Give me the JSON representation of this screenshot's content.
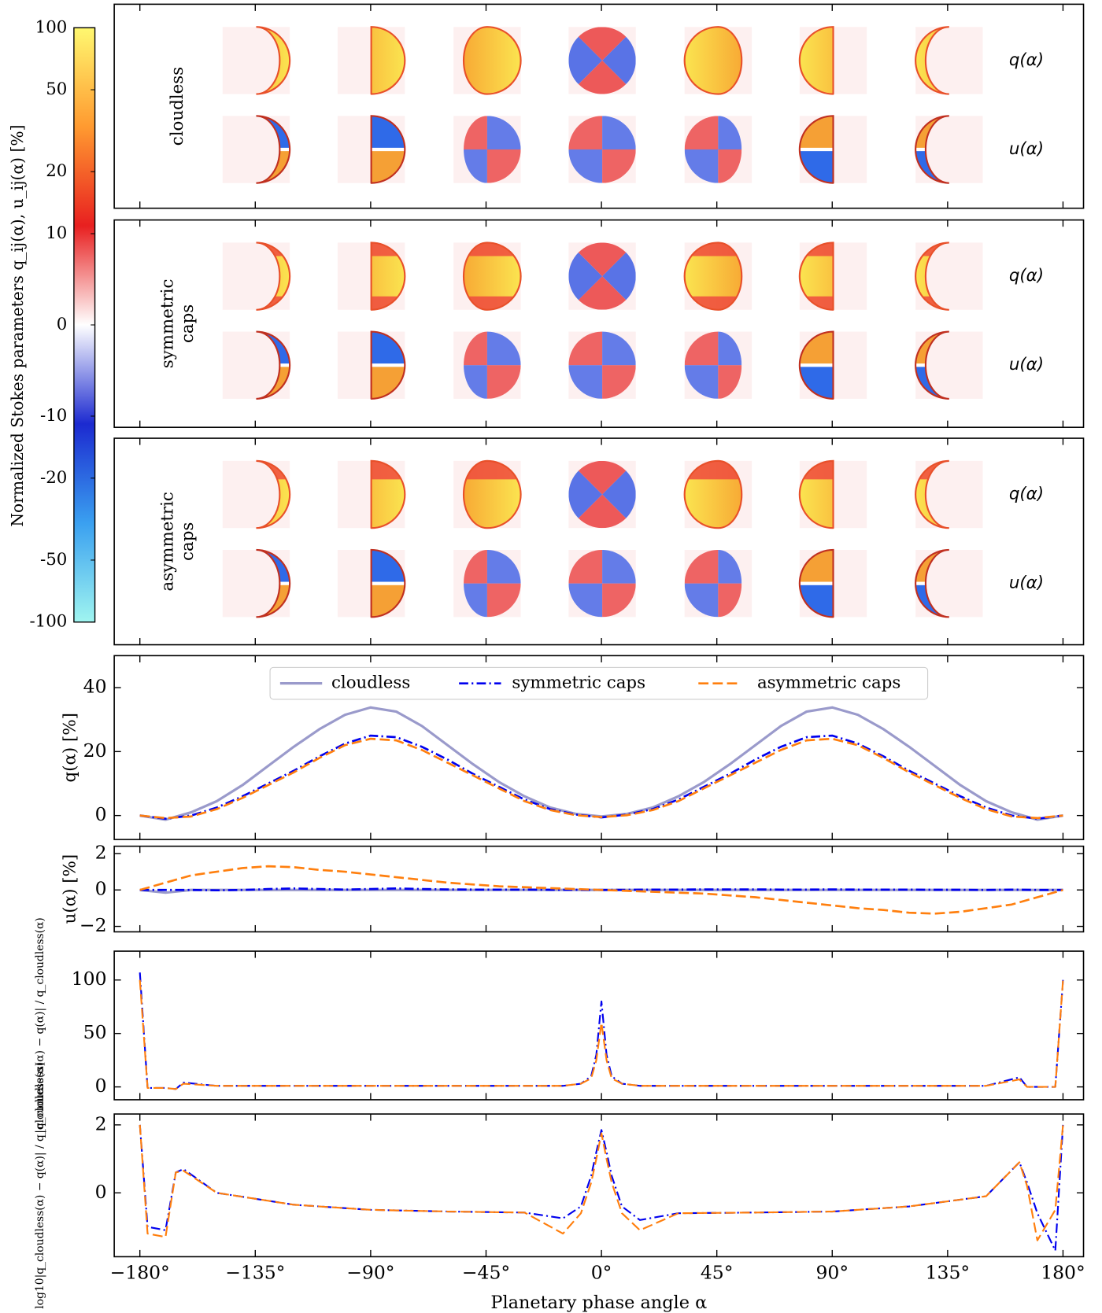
{
  "chart_data": [
    {
      "type": "colorbar",
      "label": "Normalized Stokes parameters q_ij(α), u_ij(α) [%]",
      "lim": [
        -100,
        100
      ],
      "scale": "symlog",
      "linthresh": 10,
      "colors": [
        "#a0f5f0",
        "#3aa0f0",
        "#1c2ad0",
        "#ffffff",
        "#e82020",
        "#ff9a30",
        "#fff870"
      ],
      "ticks": [
        100,
        50,
        20,
        10,
        0,
        -10,
        -20,
        -50,
        -100
      ]
    },
    {
      "type": "image",
      "panels": [
        {
          "label": [
            "cloudless"
          ],
          "rows": [
            "q(α)",
            "u(α)"
          ]
        },
        {
          "label": [
            "symmetric",
            "caps"
          ],
          "rows": [
            "q(α)",
            "u(α)"
          ]
        },
        {
          "label": [
            "asymmetric",
            "caps"
          ],
          "rows": [
            "q(α)",
            "u(α)"
          ]
        }
      ]
    },
    {
      "type": "line",
      "ylabel": "q(α)  [%]",
      "legend": "upper center",
      "xlim": [
        -190,
        188
      ],
      "ylim": [
        -7.5,
        50
      ],
      "yticks": [
        0,
        20,
        40
      ],
      "x": [
        -180,
        -170,
        -160,
        -150,
        -140,
        -130,
        -120,
        -110,
        -100,
        -90,
        -80,
        -70,
        -60,
        -50,
        -40,
        -30,
        -20,
        -10,
        0,
        10,
        20,
        30,
        40,
        50,
        60,
        70,
        80,
        90,
        100,
        110,
        120,
        130,
        140,
        150,
        160,
        170,
        180
      ],
      "series": [
        {
          "name": "cloudless",
          "color": "#9a9acb",
          "dash": "solid",
          "width": 3,
          "values": [
            0,
            -1.3,
            1,
            4.5,
            9.5,
            15.5,
            21.5,
            27,
            31.5,
            33.8,
            32.5,
            28,
            22,
            16,
            10.5,
            6,
            2.5,
            0.5,
            -0.3,
            0.5,
            2.5,
            6,
            10.5,
            16,
            22,
            28,
            32.5,
            33.8,
            31.5,
            27,
            21.5,
            15.5,
            9.5,
            4.5,
            1,
            -1.3,
            0
          ]
        },
        {
          "name": "symmetric caps",
          "color": "#0000ee",
          "dash": "dashdot",
          "width": 2.5,
          "values": [
            0,
            -1,
            0,
            2.5,
            6,
            10,
            14,
            18.5,
            22.5,
            25,
            24.5,
            21.5,
            17.5,
            13,
            9,
            5,
            2,
            0.3,
            -0.6,
            0.3,
            2,
            5,
            9,
            13,
            17.5,
            21.5,
            24.5,
            25,
            22.5,
            18.5,
            14,
            10,
            6,
            2.5,
            0,
            -1,
            0
          ]
        },
        {
          "name": "asymmetric caps",
          "color": "#ff7f0e",
          "dash": "dashed",
          "width": 2.5,
          "values": [
            0,
            -0.8,
            -0.3,
            2,
            5.5,
            9.5,
            13.5,
            18,
            22,
            24,
            23.5,
            20.5,
            16.5,
            12.5,
            8.5,
            4.5,
            1.7,
            0.1,
            -0.5,
            0.1,
            1.7,
            4.5,
            8.5,
            12.5,
            16.5,
            20.5,
            23.5,
            24,
            22,
            18,
            13.5,
            9.5,
            5.5,
            2,
            -0.3,
            -0.8,
            0
          ]
        }
      ]
    },
    {
      "type": "line",
      "ylabel": "u(α)  [%]",
      "xlim": [
        -190,
        188
      ],
      "ylim": [
        -2.3,
        2.4
      ],
      "yticks": [
        {
          "value": -2,
          "label": "−2"
        },
        0,
        2
      ],
      "x": [
        -180,
        -170,
        -160,
        -150,
        -140,
        -130,
        -120,
        -110,
        -100,
        -90,
        -80,
        -70,
        -60,
        -50,
        -40,
        -30,
        -20,
        -10,
        0,
        10,
        20,
        30,
        40,
        50,
        60,
        70,
        80,
        90,
        100,
        110,
        120,
        130,
        140,
        150,
        160,
        170,
        180
      ],
      "series": [
        {
          "color": "#9a9acb",
          "dash": "solid",
          "width": 3,
          "values": [
            0,
            -0.15,
            0,
            0,
            0,
            0,
            0,
            0,
            0,
            0,
            0,
            0,
            0,
            0,
            0,
            0,
            0,
            0,
            0,
            0,
            0,
            0,
            0,
            0,
            0,
            0,
            0,
            0,
            0,
            0,
            0,
            0,
            0,
            0,
            0,
            0,
            0
          ]
        },
        {
          "color": "#0000ee",
          "dash": "dashdot",
          "width": 2.5,
          "values": [
            0,
            0,
            0,
            -0.02,
            0,
            0.05,
            0.08,
            0.05,
            0.02,
            0.05,
            0.08,
            0.05,
            0.03,
            0.02,
            0.02,
            0.02,
            0.01,
            0.01,
            0,
            0.01,
            0.02,
            0.02,
            0.03,
            0.03,
            0.03,
            0.02,
            0.02,
            0.03,
            0.02,
            0.02,
            0.02,
            0.01,
            0.01,
            0,
            0.02,
            0,
            0
          ]
        },
        {
          "color": "#ff7f0e",
          "dash": "dashed",
          "width": 2.5,
          "values": [
            0,
            0.4,
            0.8,
            1.0,
            1.2,
            1.3,
            1.25,
            1.1,
            1.0,
            0.85,
            0.7,
            0.55,
            0.4,
            0.3,
            0.2,
            0.15,
            0.1,
            0.05,
            0,
            -0.05,
            -0.1,
            -0.15,
            -0.2,
            -0.3,
            -0.4,
            -0.55,
            -0.7,
            -0.85,
            -1.0,
            -1.1,
            -1.25,
            -1.3,
            -1.2,
            -1.0,
            -0.8,
            -0.4,
            0
          ]
        }
      ]
    },
    {
      "type": "line",
      "ylabel": "|q_cloudless(α) − q(α)| / q_cloudless(α)",
      "xlim": [
        -190,
        188
      ],
      "ylim": [
        -12,
        127
      ],
      "yticks": [
        0,
        50,
        100
      ],
      "x": [
        -180,
        -177,
        -170,
        -166,
        -163,
        -150,
        -120,
        -90,
        -60,
        -30,
        -15,
        -8,
        -4,
        -2,
        0,
        2,
        4,
        8,
        15,
        30,
        60,
        90,
        120,
        150,
        163,
        166,
        170,
        177,
        180
      ],
      "series": [
        {
          "color": "#0000ee",
          "dash": "dashdot",
          "width": 2,
          "values": [
            107,
            -1,
            -1,
            -2,
            4,
            1,
            1,
            1,
            1,
            1,
            1,
            3,
            10,
            30,
            80,
            30,
            10,
            3,
            1,
            1,
            1,
            1,
            1,
            1,
            9,
            0,
            0,
            0,
            100
          ]
        },
        {
          "color": "#ff7f0e",
          "dash": "dashed",
          "width": 2,
          "values": [
            100,
            -1,
            -1,
            -2,
            3,
            1,
            1,
            1,
            1,
            1,
            1,
            3,
            8,
            25,
            60,
            25,
            8,
            3,
            1,
            1,
            1,
            1,
            1,
            1,
            7,
            0,
            0,
            0,
            100
          ]
        }
      ]
    },
    {
      "type": "line",
      "ylabel": "log10|q_cloudless(α) − q(α)| / q_cloudless(α)",
      "xlabel": "Planetary phase angle α",
      "xlim": [
        -190,
        188
      ],
      "ylim": [
        -1.88,
        2.32
      ],
      "yticks": [
        0,
        2
      ],
      "xticks": [
        {
          "value": -180,
          "label": "−180°"
        },
        {
          "value": -135,
          "label": "−135°"
        },
        {
          "value": -90,
          "label": "−90°"
        },
        {
          "value": -45,
          "label": "−45°"
        },
        {
          "value": 0,
          "label": "0°"
        },
        {
          "value": 45,
          "label": "45°"
        },
        {
          "value": 90,
          "label": "90°"
        },
        {
          "value": 135,
          "label": "135°"
        },
        {
          "value": 180,
          "label": "180°"
        }
      ],
      "x": [
        -180,
        -177,
        -170,
        -166,
        -163,
        -150,
        -120,
        -90,
        -60,
        -30,
        -15,
        -8,
        -4,
        -2,
        0,
        2,
        4,
        8,
        15,
        30,
        60,
        90,
        120,
        150,
        163,
        166,
        170,
        177,
        180
      ],
      "series": [
        {
          "color": "#0000ee",
          "dash": "dashdot",
          "width": 2,
          "values": [
            2.0,
            -1.0,
            -1.1,
            0.6,
            0.7,
            0.0,
            -0.35,
            -0.5,
            -0.55,
            -0.58,
            -0.75,
            -0.4,
            0.5,
            1.2,
            1.85,
            1.2,
            0.5,
            -0.4,
            -0.8,
            -0.6,
            -0.58,
            -0.55,
            -0.4,
            -0.1,
            0.9,
            0.3,
            -0.6,
            -1.7,
            2.0
          ]
        },
        {
          "color": "#ff7f0e",
          "dash": "dashed",
          "width": 2,
          "values": [
            2.0,
            -1.2,
            -1.3,
            0.6,
            0.65,
            0.0,
            -0.35,
            -0.5,
            -0.55,
            -0.58,
            -1.2,
            -0.6,
            0.3,
            1.0,
            1.75,
            1.0,
            0.3,
            -0.6,
            -1.1,
            -0.6,
            -0.58,
            -0.55,
            -0.4,
            -0.1,
            0.9,
            0.2,
            -1.4,
            -0.5,
            2.0
          ]
        }
      ]
    }
  ]
}
